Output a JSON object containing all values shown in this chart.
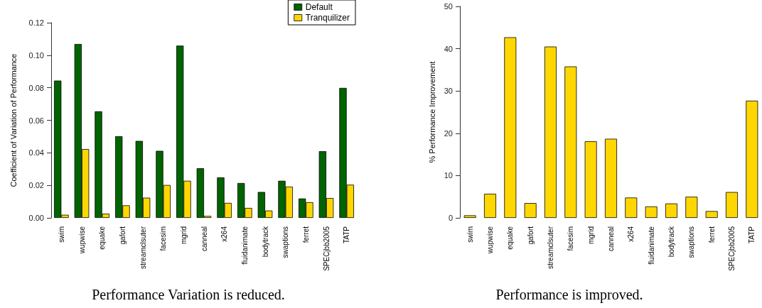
{
  "chart_data": [
    {
      "type": "bar",
      "title": "Performance Variation is reduced.",
      "ylabel": "Coefficient of Variation of Performance",
      "categories": [
        "swim",
        "wupwise",
        "equake",
        "gafort",
        "streamclsuter",
        "facesim",
        "mgrid",
        "canneal",
        "x264",
        "fluidanimate",
        "bodytrack",
        "swaptions",
        "ferret",
        "SPECjbb2005",
        "TATP"
      ],
      "series": [
        {
          "name": "Default",
          "color": "#006400",
          "values": [
            0.0844,
            0.1069,
            0.0655,
            0.0502,
            0.0473,
            0.0412,
            0.1059,
            0.0305,
            0.0249,
            0.0214,
            0.0159,
            0.0228,
            0.0119,
            0.041,
            0.0799
          ]
        },
        {
          "name": "Tranquilizer",
          "color": "#ffd700",
          "values": [
            0.0019,
            0.0423,
            0.0026,
            0.0077,
            0.0124,
            0.0202,
            0.0228,
            0.0012,
            0.0092,
            0.0061,
            0.0045,
            0.0192,
            0.0096,
            0.0122,
            0.0204
          ]
        }
      ],
      "ylim": [
        0,
        0.12
      ],
      "yticks": [
        {
          "value": 0,
          "label": "0.00"
        },
        {
          "value": 0.02,
          "label": "0.02"
        },
        {
          "value": 0.04,
          "label": "0.04"
        },
        {
          "value": 0.06,
          "label": "0.06"
        },
        {
          "value": 0.08,
          "label": "0.08"
        },
        {
          "value": 0.1,
          "label": "0.10"
        },
        {
          "value": 0.12,
          "label": "0.12"
        }
      ],
      "grid": false,
      "legend": "top right"
    },
    {
      "type": "bar",
      "title": "Performance is improved.",
      "ylabel": "% Performance Improvement",
      "categories": [
        "swim",
        "wupwise",
        "equake",
        "gafort",
        "streamclsuter",
        "facesim",
        "mgrid",
        "canneal",
        "x264",
        "fluidanimate",
        "bodytrack",
        "swaptions",
        "ferret",
        "SPECjbb2005",
        "TATP"
      ],
      "series": [
        {
          "color": "#ffd700",
          "values": [
            0.6,
            5.7,
            42.7,
            3.5,
            40.5,
            35.8,
            18.1,
            18.7,
            4.8,
            2.7,
            3.4,
            5.0,
            1.6,
            6.1,
            27.7
          ]
        }
      ],
      "ylim": [
        0,
        50
      ],
      "yticks": [
        0,
        10,
        20,
        30,
        40,
        50
      ],
      "grid": false,
      "legend": false
    }
  ]
}
